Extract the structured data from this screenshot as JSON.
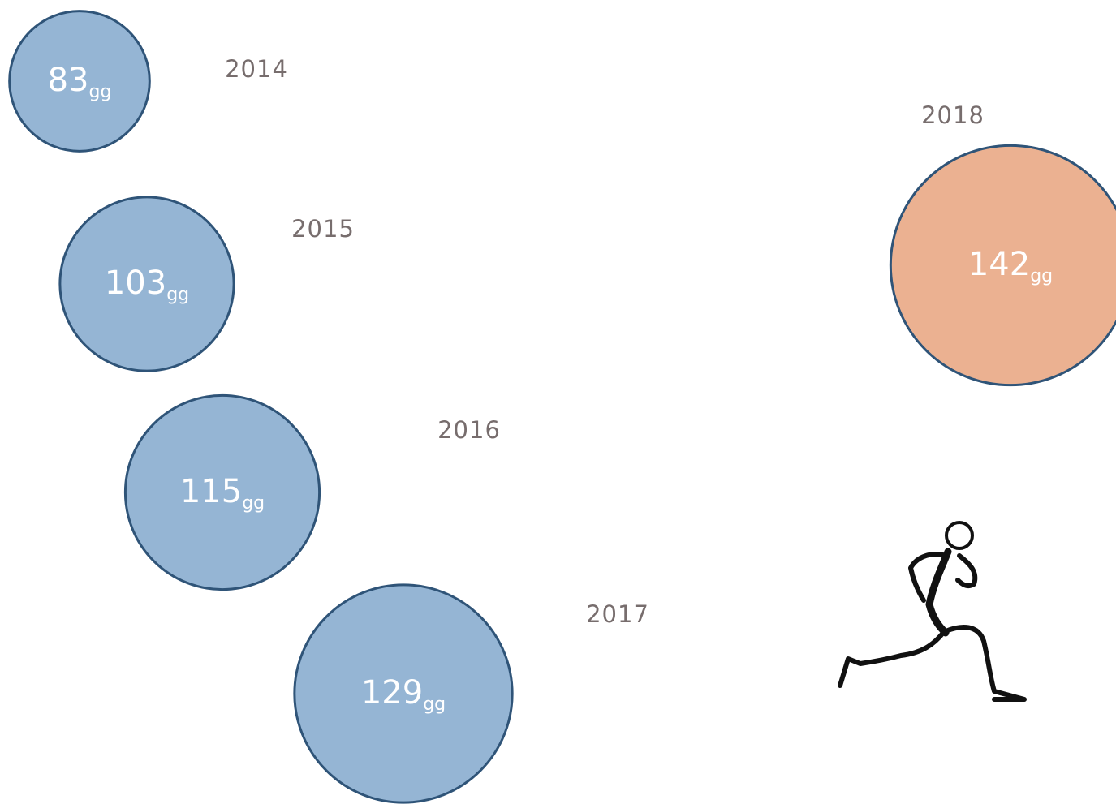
{
  "chart_data": {
    "type": "bubble",
    "categories": [
      "2014",
      "2015",
      "2016",
      "2017",
      "2018"
    ],
    "values": [
      83,
      103,
      115,
      129,
      142
    ],
    "unit": "gg",
    "colors": [
      "#95b5d4",
      "#95b5d4",
      "#95b5d4",
      "#95b5d4",
      "#ebb191"
    ],
    "edge_color": "#2f5478"
  }
}
